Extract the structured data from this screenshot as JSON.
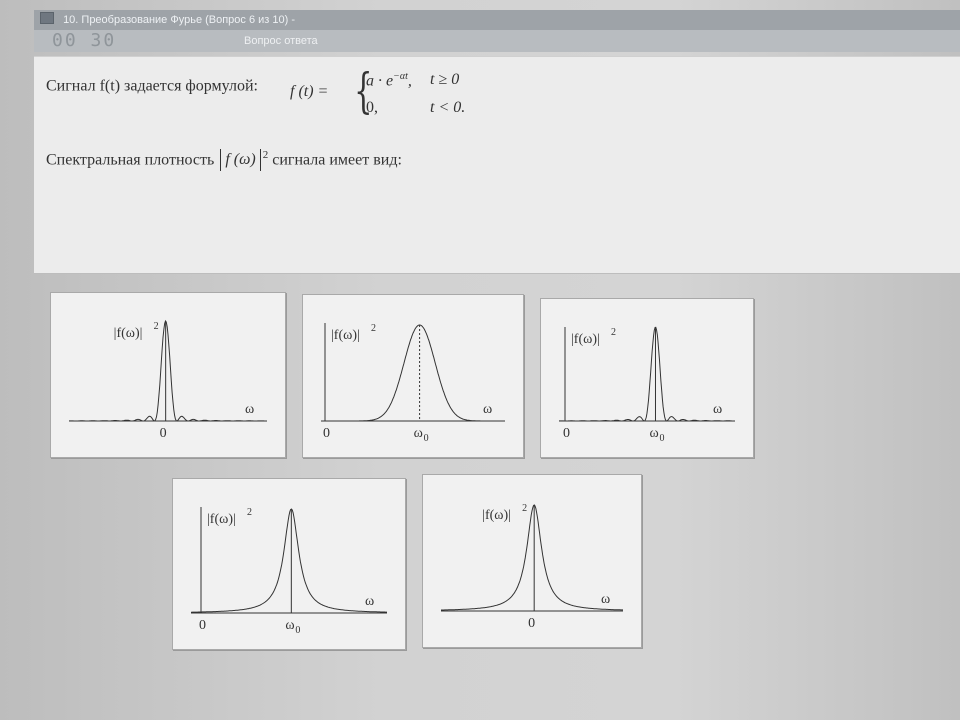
{
  "window": {
    "title": "10. Преобразование Фурье (Вопрос 6 из 10) -",
    "timer": "00 30",
    "question_button": "Вопрос ответа"
  },
  "question": {
    "line1_text": "Сигнал f(t) задается формулой:",
    "formula_lhs": "f (t) =",
    "formula_row1": "a · e",
    "formula_row1_exp": "−αt",
    "formula_row1_cond": "t ≥ 0",
    "formula_row2": "0,",
    "formula_row2_cond": "t < 0",
    "formula_period": ".",
    "line2_before": "Спектральная плотность",
    "line2_abs": "f (ω)",
    "line2_exp": "2",
    "line2_after": "сигнала имеет вид:"
  },
  "options": [
    {
      "ylabel": "|f(ω)|",
      "ylabel_exp": "2",
      "xlabel": "ω",
      "tick": "0",
      "tick_sub": "",
      "shape": "sinc-centered"
    },
    {
      "ylabel": "|f(ω)|",
      "ylabel_exp": "2",
      "xlabel": "ω",
      "tick": "ω",
      "tick_sub": "0",
      "origin": "0",
      "shape": "gaussian-shifted"
    },
    {
      "ylabel": "|f(ω)|",
      "ylabel_exp": "2",
      "xlabel": "ω",
      "tick": "ω",
      "tick_sub": "0",
      "origin": "0",
      "shape": "sinc-shifted"
    },
    {
      "ylabel": "|f(ω)|",
      "ylabel_exp": "2",
      "xlabel": "ω",
      "tick": "ω",
      "tick_sub": "0",
      "origin": "0",
      "shape": "lorentz-shifted"
    },
    {
      "ylabel": "|f(ω)|",
      "ylabel_exp": "2",
      "xlabel": "ω",
      "tick": "0",
      "tick_sub": "",
      "shape": "lorentz-centered"
    }
  ]
}
